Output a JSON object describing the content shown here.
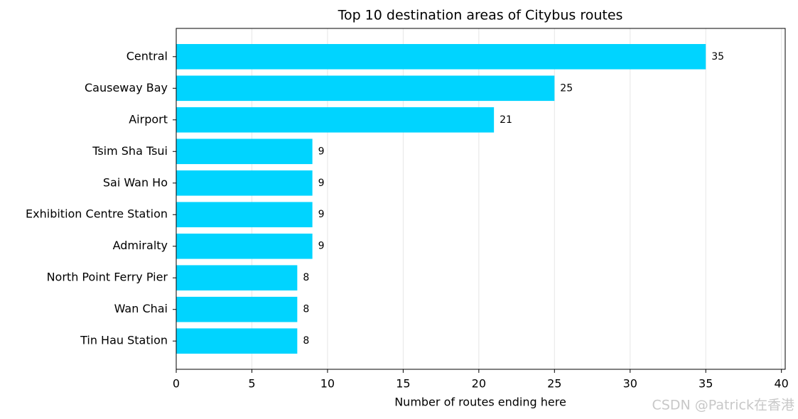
{
  "chart_data": {
    "type": "barh",
    "title": "Top 10 destination areas of Citybus routes",
    "xlabel": "Number of routes ending here",
    "categories": [
      "Central",
      "Causeway Bay",
      "Airport",
      "Tsim Sha Tsui",
      "Sai Wan Ho",
      "Exhibition Centre Station",
      "Admiralty",
      "North Point Ferry Pier",
      "Wan Chai",
      "Tin Hau Station"
    ],
    "values": [
      35,
      25,
      21,
      9,
      9,
      9,
      9,
      8,
      8,
      8
    ],
    "color": "#00d4ff",
    "xlim": [
      0,
      40.25
    ],
    "xticks": [
      0,
      5,
      10,
      15,
      20,
      25,
      30,
      35,
      40
    ],
    "grid": true,
    "watermark": "CSDN @Patrick在香港"
  }
}
